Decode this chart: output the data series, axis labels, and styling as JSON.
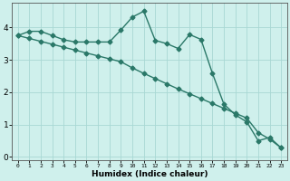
{
  "title": "",
  "xlabel": "Humidex (Indice chaleur)",
  "ylabel": "",
  "line_color": "#2a7868",
  "bg_color": "#cff0ec",
  "grid_color": "#a8d8d4",
  "xlim": [
    -0.5,
    23.5
  ],
  "ylim": [
    -0.1,
    4.75
  ],
  "xticks": [
    0,
    1,
    2,
    3,
    4,
    5,
    6,
    7,
    8,
    9,
    10,
    11,
    12,
    13,
    14,
    15,
    16,
    17,
    18,
    19,
    20,
    21,
    22,
    23
  ],
  "yticks": [
    0,
    1,
    2,
    3,
    4
  ],
  "series1_x": [
    0,
    1,
    2,
    3,
    4,
    5,
    6,
    7,
    8,
    9,
    10,
    11,
    12,
    13,
    14,
    15,
    16,
    17,
    18,
    19,
    20,
    21,
    22,
    23
  ],
  "series1_y": [
    3.75,
    3.88,
    3.88,
    3.75,
    3.62,
    3.55,
    3.55,
    3.55,
    3.55,
    3.92,
    4.32,
    4.5,
    3.6,
    3.5,
    3.35,
    3.78,
    3.63,
    2.58,
    1.63,
    1.3,
    1.08,
    0.5,
    0.6,
    0.28
  ],
  "series2_x": [
    0,
    1,
    2,
    3,
    4,
    5,
    6,
    7,
    8,
    9,
    10,
    11,
    12,
    13,
    14,
    15,
    16,
    17,
    18,
    19,
    20,
    21,
    22,
    23
  ],
  "series2_y": [
    3.75,
    3.66,
    3.57,
    3.48,
    3.39,
    3.3,
    3.21,
    3.12,
    3.03,
    2.94,
    2.75,
    2.58,
    2.42,
    2.26,
    2.1,
    1.95,
    1.8,
    1.65,
    1.5,
    1.35,
    1.2,
    0.75,
    0.55,
    0.28
  ],
  "marker": "D",
  "markersize": 2.5,
  "linewidth": 1.0
}
